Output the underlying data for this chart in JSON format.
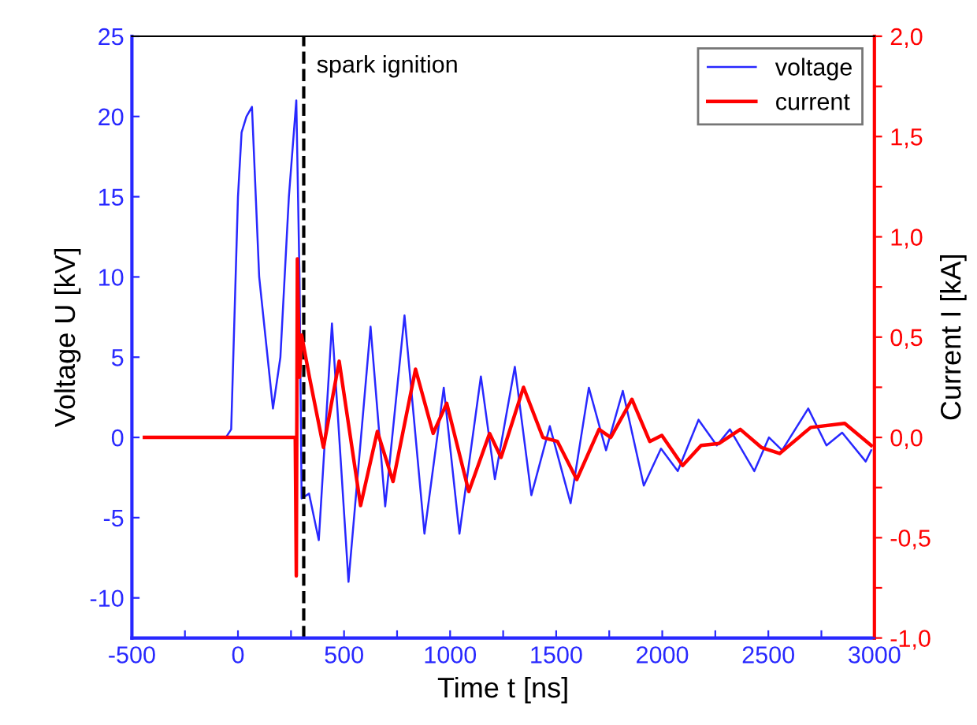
{
  "chart_data": {
    "type": "line",
    "xlabel": "Time t [ns]",
    "ylabel": "Voltage U [kV]",
    "y2label": "Current I [kA]",
    "xlim": [
      -500,
      3000
    ],
    "xticks": [
      -500,
      {
        "value": -250,
        "label": null
      },
      0,
      {
        "value": 250,
        "label": null
      },
      500,
      {
        "value": 750,
        "label": null
      },
      1000,
      {
        "value": 1250,
        "label": null
      },
      1500,
      {
        "value": 1750,
        "label": null
      },
      2000,
      {
        "value": 2250,
        "label": null
      },
      2500,
      {
        "value": 2750,
        "label": null
      },
      3000
    ],
    "ylim": [
      -12.5,
      25
    ],
    "yticks": [
      -10,
      -5,
      0,
      5,
      10,
      15,
      20,
      25
    ],
    "y2lim": [
      -1.0,
      2.0
    ],
    "y2ticks": [
      {
        "value": -1.0,
        "label": "-1,0"
      },
      {
        "value": -0.75,
        "label": null
      },
      {
        "value": -0.5,
        "label": "-0,5"
      },
      {
        "value": -0.25,
        "label": null
      },
      {
        "value": 0.0,
        "label": "0,0"
      },
      {
        "value": 0.25,
        "label": null
      },
      {
        "value": 0.5,
        "label": "0,5"
      },
      {
        "value": 0.75,
        "label": null
      },
      {
        "value": 1.0,
        "label": "1,0"
      },
      {
        "value": 1.25,
        "label": null
      },
      {
        "value": 1.5,
        "label": "1,5"
      },
      {
        "value": 1.75,
        "label": null
      },
      {
        "value": 2.0,
        "label": "2,0"
      }
    ],
    "grid": false,
    "legend": "top right",
    "marker": "none",
    "line_style": "solid",
    "ref_lines": [
      {
        "axis": "x",
        "value": 310,
        "label": "spark ignition",
        "color": "#000000",
        "line_style": "dashed"
      }
    ],
    "series": [
      {
        "name": "voltage",
        "color": "#2828ff",
        "x": [
          -441,
          -200,
          -57,
          -32,
          0,
          17,
          40,
          66,
          100,
          165,
          200,
          240,
          275,
          290,
          300,
          335,
          381,
          443,
          521,
          625,
          694,
          785,
          879,
          970,
          1044,
          1145,
          1211,
          1305,
          1383,
          1470,
          1568,
          1654,
          1735,
          1814,
          1913,
          1994,
          2073,
          2171,
          2257,
          2319,
          2434,
          2503,
          2565,
          2688,
          2774,
          2848,
          2959,
          2985
        ],
        "values": [
          0,
          0,
          0,
          0.5,
          15,
          19,
          20,
          20.6,
          10,
          1.8,
          5,
          15,
          21,
          10,
          -3.8,
          -3.5,
          -6.4,
          7.1,
          -9.0,
          6.9,
          -4.3,
          7.6,
          -6.0,
          3.1,
          -6.0,
          3.8,
          -2.6,
          4.4,
          -3.6,
          0.7,
          -4.1,
          3.1,
          -0.8,
          2.9,
          -3.0,
          -0.7,
          -2.1,
          1.1,
          -0.5,
          0.5,
          -2.1,
          0,
          -0.8,
          1.8,
          -0.5,
          0.3,
          -1.5,
          -0.8
        ]
      },
      {
        "name": "current",
        "color": "#ff0000",
        "axis": "y2",
        "x": [
          -441,
          0,
          270,
          275,
          280,
          290,
          300,
          337,
          403,
          477,
          578,
          657,
          731,
          837,
          920,
          984,
          1088,
          1186,
          1240,
          1346,
          1437,
          1506,
          1597,
          1702,
          1757,
          1857,
          1941,
          1998,
          2096,
          2183,
          2268,
          2368,
          2467,
          2553,
          2700,
          2860,
          2985
        ],
        "values": [
          0,
          0,
          0,
          -0.69,
          0.89,
          0.3,
          0.51,
          0.3,
          -0.05,
          0.38,
          -0.34,
          0.03,
          -0.22,
          0.34,
          0.02,
          0.17,
          -0.27,
          0.02,
          -0.1,
          0.25,
          0.0,
          -0.02,
          -0.21,
          0.04,
          0.0,
          0.19,
          -0.02,
          0.01,
          -0.14,
          -0.04,
          -0.03,
          0.04,
          -0.05,
          -0.08,
          0.05,
          0.07,
          -0.04
        ]
      }
    ]
  }
}
